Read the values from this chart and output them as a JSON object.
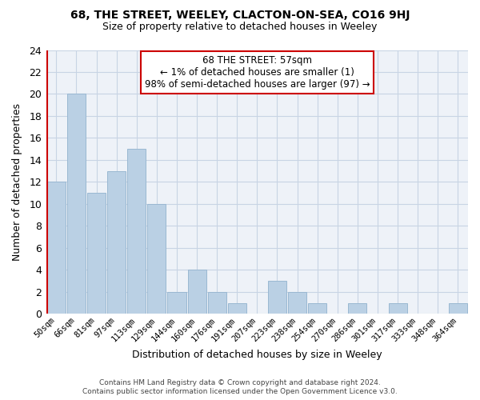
{
  "title": "68, THE STREET, WEELEY, CLACTON-ON-SEA, CO16 9HJ",
  "subtitle": "Size of property relative to detached houses in Weeley",
  "xlabel": "Distribution of detached houses by size in Weeley",
  "ylabel": "Number of detached properties",
  "bar_color": "#bad0e4",
  "bar_edge_color": "#9ab8d2",
  "highlight_edge_color": "#cc0000",
  "categories": [
    "50sqm",
    "66sqm",
    "81sqm",
    "97sqm",
    "113sqm",
    "129sqm",
    "144sqm",
    "160sqm",
    "176sqm",
    "191sqm",
    "207sqm",
    "223sqm",
    "238sqm",
    "254sqm",
    "270sqm",
    "286sqm",
    "301sqm",
    "317sqm",
    "333sqm",
    "348sqm",
    "364sqm"
  ],
  "values": [
    12,
    20,
    11,
    13,
    15,
    10,
    2,
    4,
    2,
    1,
    0,
    3,
    2,
    1,
    0,
    1,
    0,
    1,
    0,
    0,
    1
  ],
  "highlight_index": 0,
  "annotation_text": "68 THE STREET: 57sqm\n← 1% of detached houses are smaller (1)\n98% of semi-detached houses are larger (97) →",
  "ylim": [
    0,
    24
  ],
  "yticks": [
    0,
    2,
    4,
    6,
    8,
    10,
    12,
    14,
    16,
    18,
    20,
    22,
    24
  ],
  "footer_line1": "Contains HM Land Registry data © Crown copyright and database right 2024.",
  "footer_line2": "Contains public sector information licensed under the Open Government Licence v3.0.",
  "figsize": [
    6.0,
    5.0
  ],
  "dpi": 100,
  "grid_color": "#c8d4e4",
  "background_color": "#ffffff",
  "plot_bg_color": "#eef2f8"
}
